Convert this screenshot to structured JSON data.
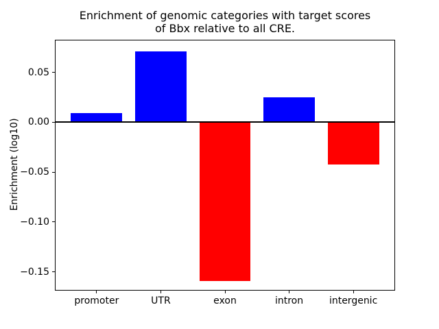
{
  "chart_data": {
    "type": "bar",
    "title": "Enrichment of genomic categories with target scores\nof Bbx relative to all CRE.",
    "title_lines": [
      "Enrichment of genomic categories with target scores",
      "of Bbx relative to all CRE."
    ],
    "xlabel": "",
    "ylabel": "Enrichment (log10)",
    "categories": [
      "promoter",
      "UTR",
      "exon",
      "intron",
      "intergenic"
    ],
    "values": [
      0.009,
      0.071,
      -0.159,
      0.025,
      -0.042
    ],
    "bar_colors": [
      "#0000ff",
      "#0000ff",
      "#ff0000",
      "#0000ff",
      "#ff0000"
    ],
    "positive_color": "#0000ff",
    "negative_color": "#ff0000",
    "yticks": {
      "values": [
        0.05,
        0.0,
        -0.05,
        -0.1,
        -0.15
      ],
      "labels": [
        "0.05",
        "0.00",
        "−0.05",
        "−0.10",
        "−0.15"
      ]
    },
    "ylim": [
      -0.168,
      0.082
    ],
    "xlim": [
      -0.64,
      4.64
    ],
    "bar_width": 0.8,
    "zero_line": true,
    "grid": false,
    "legend": null
  }
}
